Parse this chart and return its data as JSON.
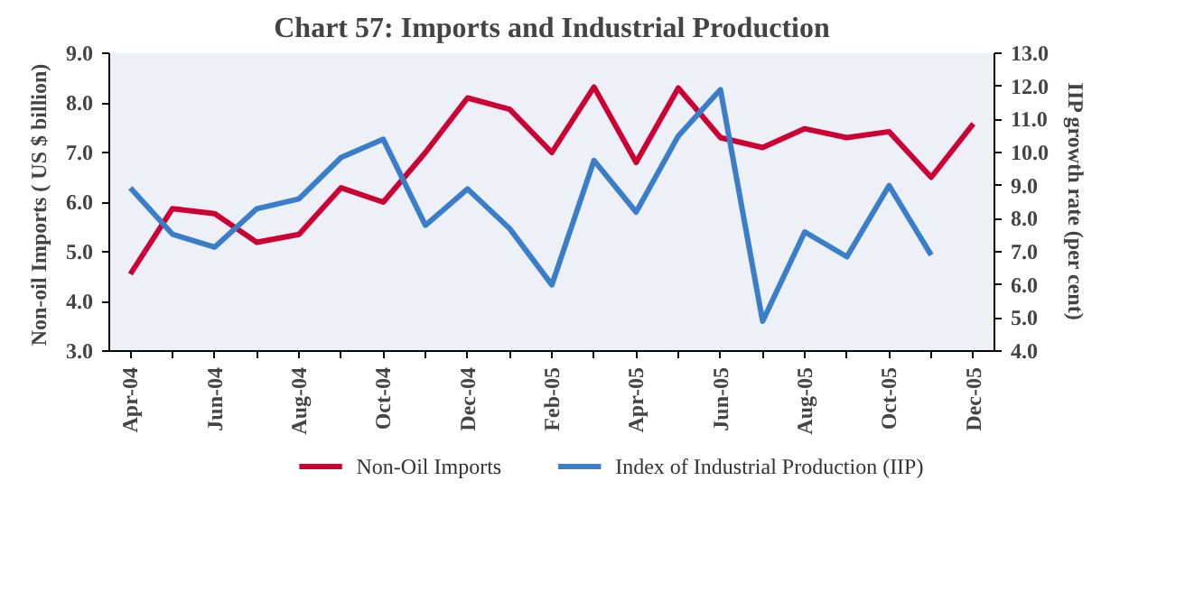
{
  "chart_data": {
    "type": "line",
    "title": "Chart 57: Imports and Industrial Production",
    "ylabel": "Non-oil Imports ( US $  billion)",
    "y2label": "IIP growth rate (per cent)",
    "categories": [
      "Apr-04",
      null,
      "Jun-04",
      null,
      "Aug-04",
      null,
      "Oct-04",
      null,
      "Dec-04",
      null,
      "Feb-05",
      null,
      "Apr-05",
      null,
      "Jun-05",
      null,
      "Aug-05",
      null,
      "Oct-05",
      null,
      "Dec-05"
    ],
    "series": [
      {
        "name": "Non-Oil Imports",
        "color": "#cc0033",
        "values": [
          4.55,
          5.87,
          5.77,
          5.19,
          5.35,
          6.29,
          6.0,
          7.0,
          8.1,
          7.87,
          7.0,
          8.32,
          6.8,
          8.3,
          7.3,
          7.1,
          7.48,
          7.3,
          7.42,
          6.5,
          7.58
        ]
      },
      {
        "name": "Index of Industrial Production (IIP)",
        "color": "#3a7dc8",
        "axis": "y2",
        "values": [
          8.93,
          7.53,
          7.14,
          8.3,
          8.6,
          9.85,
          10.4,
          7.8,
          8.9,
          7.7,
          6.0,
          9.76,
          8.2,
          10.5,
          11.9,
          4.9,
          7.6,
          6.85,
          9.0,
          6.9,
          null
        ]
      }
    ],
    "ylim": [
      3,
      9
    ],
    "yticks": [
      {
        "value": 3,
        "label": "3.0"
      },
      {
        "value": 4,
        "label": "4.0"
      },
      {
        "value": 5,
        "label": "5.0"
      },
      {
        "value": 6,
        "label": "6.0"
      },
      {
        "value": 7,
        "label": "7.0"
      },
      {
        "value": 8,
        "label": "8.0"
      },
      {
        "value": 9,
        "label": "9.0"
      }
    ],
    "y2lim": [
      4,
      13
    ],
    "y2ticks": [
      {
        "value": 4,
        "label": "4.0"
      },
      {
        "value": 5,
        "label": "5.0"
      },
      {
        "value": 6,
        "label": "6.0"
      },
      {
        "value": 7,
        "label": "7.0"
      },
      {
        "value": 8,
        "label": "8.0"
      },
      {
        "value": 9,
        "label": "9.0"
      },
      {
        "value": 10,
        "label": "10.0"
      },
      {
        "value": 11,
        "label": "11.0"
      },
      {
        "value": 12,
        "label": "12.0"
      },
      {
        "value": 13,
        "label": "13.0"
      }
    ],
    "grid": false,
    "legend": "bottom",
    "marker": "none",
    "line_style": "solid"
  }
}
